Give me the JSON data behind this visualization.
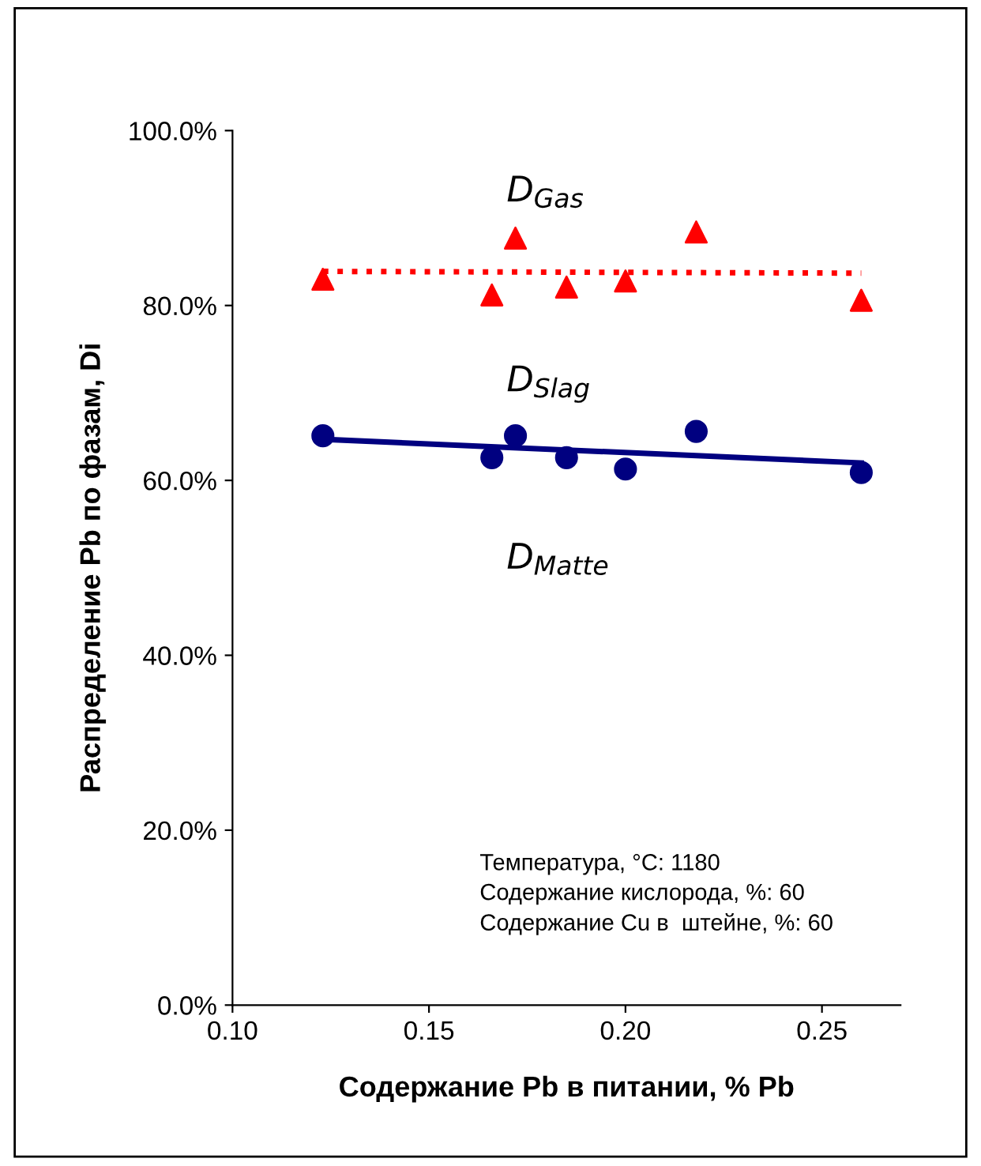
{
  "chart_data": {
    "type": "scatter",
    "xlabel": "Содержание Pb в питании, % Pb",
    "ylabel": "Распределение Pb по фазам, Di",
    "series": [
      {
        "marker": "triangle",
        "color": "#ff0000",
        "x": [
          0.123,
          0.166,
          0.172,
          0.185,
          0.2,
          0.218,
          0.26
        ],
        "values": [
          83.0,
          81.2,
          87.7,
          82.1,
          82.8,
          88.4,
          80.6
        ]
      },
      {
        "marker": "circle",
        "color": "#000080",
        "x": [
          0.123,
          0.166,
          0.172,
          0.185,
          0.2,
          0.218,
          0.26
        ],
        "values": [
          65.1,
          62.6,
          65.1,
          62.6,
          61.3,
          65.6,
          60.9
        ]
      },
      {
        "type": "line",
        "marker": "none",
        "line_style": "dotted",
        "color": "#ff0000",
        "x": [
          0.123,
          0.26
        ],
        "values": [
          83.9,
          83.7
        ]
      },
      {
        "type": "line",
        "marker": "none",
        "line_style": "solid",
        "color": "#000080",
        "x": [
          0.123,
          0.26
        ],
        "values": [
          64.7,
          62.0
        ]
      }
    ],
    "annotations": [
      "D$_{Gas}$",
      "D$_{Slag}$",
      "D$_{Matte}$",
      "Температура, °С: 1180\nСодержание кислорода, %: 60\nСодержание Cu в  штейне, %: 60"
    ],
    "xlim": [
      0.1,
      0.27
    ],
    "ylim": [
      0,
      100
    ],
    "xticks": [
      {
        "value": 0.1,
        "label": "0.10"
      },
      {
        "value": 0.15,
        "label": "0.15"
      },
      {
        "value": 0.2,
        "label": "0.20"
      },
      {
        "value": 0.25,
        "label": "0.25"
      }
    ],
    "yticks": [
      {
        "value": 0,
        "label": "0.0%"
      },
      {
        "value": 20,
        "label": "20.0%"
      },
      {
        "value": 40,
        "label": "40.0%"
      },
      {
        "value": 60,
        "label": "60.0%"
      },
      {
        "value": 80,
        "label": "80.0%"
      },
      {
        "value": 100,
        "label": "100.0%"
      }
    ],
    "grid": false,
    "legend": false
  }
}
